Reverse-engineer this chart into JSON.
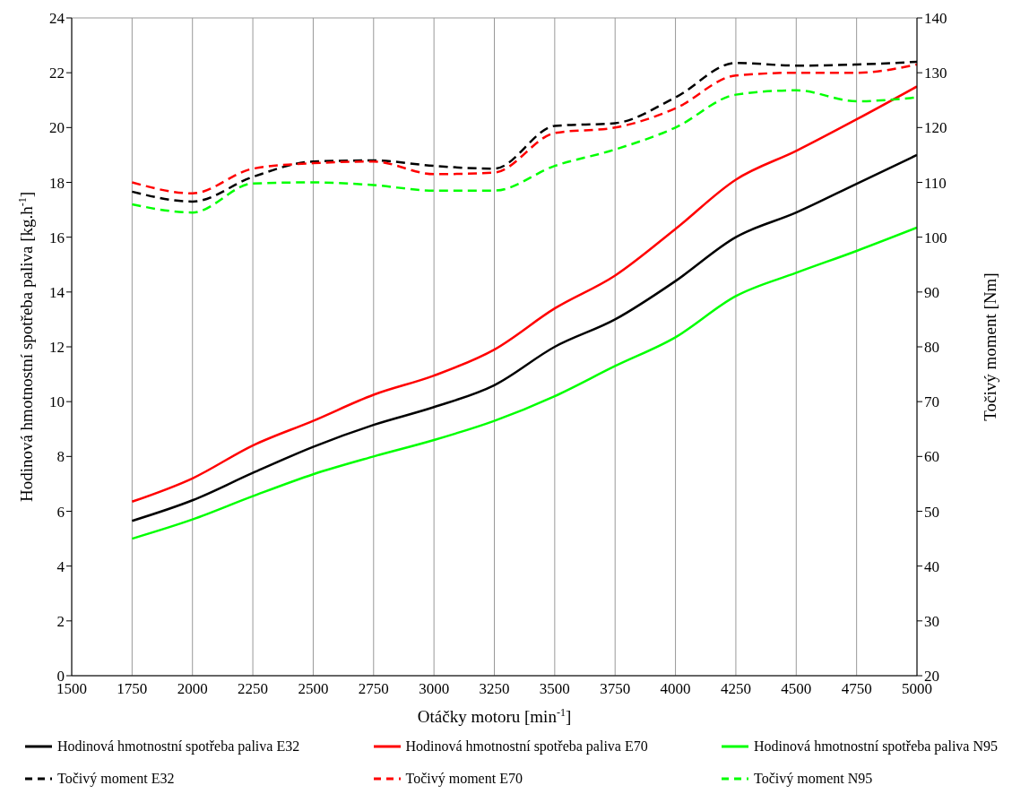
{
  "chart_data": {
    "type": "line",
    "xlabel": "Otáčky motoru [min$^{-1}$]",
    "ylabel": "Hodinová hmotnostní spotřeba paliva [kg.h$^{-1}$]",
    "y2label": "Točivý moment [Nm]",
    "x": [
      1750,
      2000,
      2250,
      2500,
      2750,
      3000,
      3250,
      3500,
      3750,
      4000,
      4250,
      4500,
      4750,
      5000
    ],
    "xlim": [
      1500,
      5000
    ],
    "xticks": [
      1500,
      1750,
      2000,
      2250,
      2500,
      2750,
      3000,
      3250,
      3500,
      3750,
      4000,
      4250,
      4500,
      4750,
      5000
    ],
    "ylim": [
      0,
      24
    ],
    "yticks": [
      0,
      2,
      4,
      6,
      8,
      10,
      12,
      14,
      16,
      18,
      20,
      22,
      24
    ],
    "y2lim": [
      20,
      140
    ],
    "y2ticks": [
      20,
      30,
      40,
      50,
      60,
      70,
      80,
      90,
      100,
      110,
      120,
      130,
      140
    ],
    "grid": true,
    "legend": "bottom",
    "marker": "none",
    "series": [
      {
        "name": "Hodinová hmotnostní spotřeba paliva E32",
        "color": "#000000",
        "line_style": "solid",
        "values": [
          5.65,
          6.4,
          7.4,
          8.35,
          9.15,
          9.8,
          10.6,
          12.0,
          13.0,
          14.4,
          16.0,
          16.9,
          17.95,
          19.0
        ]
      },
      {
        "name": "Hodinová hmotnostní spotřeba paliva E70",
        "color": "#ff0000",
        "line_style": "solid",
        "values": [
          6.35,
          7.2,
          8.4,
          9.3,
          10.25,
          10.95,
          11.9,
          13.4,
          14.6,
          16.3,
          18.1,
          19.15,
          20.3,
          21.5
        ]
      },
      {
        "name": "Hodinová hmotnostní spotřeba paliva N95",
        "color": "#00ff00",
        "line_style": "solid",
        "values": [
          5.0,
          5.7,
          6.55,
          7.35,
          8.0,
          8.6,
          9.3,
          10.2,
          11.3,
          12.35,
          13.85,
          14.7,
          15.5,
          16.35
        ]
      },
      {
        "name": "Točivý moment E32",
        "color": "#000000",
        "line_style": "dashed",
        "axis": "y2",
        "values": [
          108.3,
          106.5,
          111,
          113.8,
          114,
          113,
          112.5,
          120.3,
          120.8,
          125.5,
          131.8,
          131.3,
          131.5,
          132
        ]
      },
      {
        "name": "Točivý moment E70",
        "color": "#ff0000",
        "line_style": "dashed",
        "axis": "y2",
        "values": [
          110,
          108,
          112.5,
          113.5,
          113.8,
          111.5,
          111.8,
          119,
          120,
          123.5,
          129.5,
          130,
          130,
          131.5
        ]
      },
      {
        "name": "Točivý moment N95",
        "color": "#00ff00",
        "line_style": "dashed",
        "axis": "y2",
        "values": [
          106,
          104.5,
          109.8,
          110,
          109.5,
          108.5,
          108.5,
          113,
          116,
          120,
          126,
          126.8,
          124.8,
          125.5
        ]
      }
    ]
  }
}
